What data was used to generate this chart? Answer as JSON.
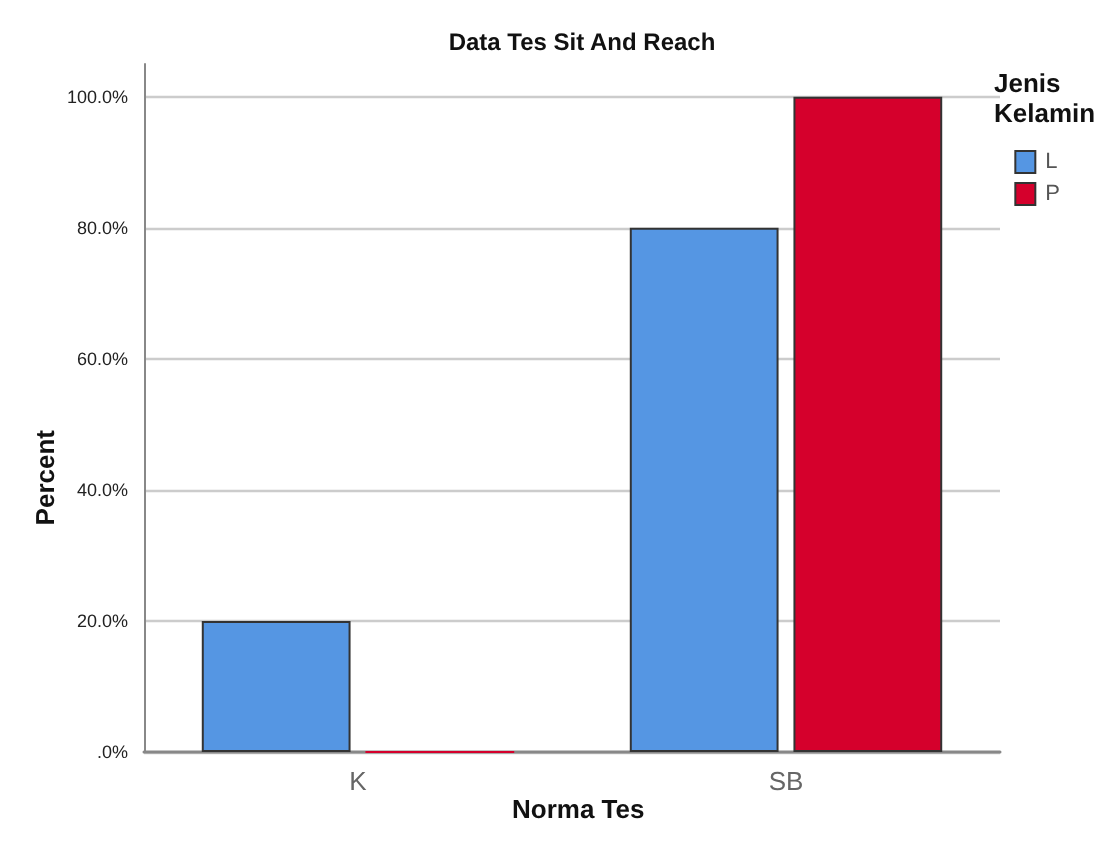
{
  "chart_data": {
    "type": "bar",
    "title": "Data Tes Sit And Reach",
    "xlabel": "Norma Tes",
    "ylabel": "Percent",
    "legend_title": "Jenis Kelamin",
    "categories": [
      "K",
      "SB"
    ],
    "series": [
      {
        "name": "L",
        "color": "#5596e3",
        "values": [
          20,
          80
        ]
      },
      {
        "name": "P",
        "color": "#d5002c",
        "values": [
          0,
          100
        ]
      }
    ],
    "ylim": [
      0,
      105
    ],
    "yticks": [
      {
        "value": 0,
        "label": ".0%"
      },
      {
        "value": 20,
        "label": "20.0%"
      },
      {
        "value": 40,
        "label": "40.0%"
      },
      {
        "value": 60,
        "label": "60.0%"
      },
      {
        "value": 80,
        "label": "80.0%"
      },
      {
        "value": 100,
        "label": "100.0%"
      }
    ],
    "grid": "y",
    "legend": "top right"
  }
}
